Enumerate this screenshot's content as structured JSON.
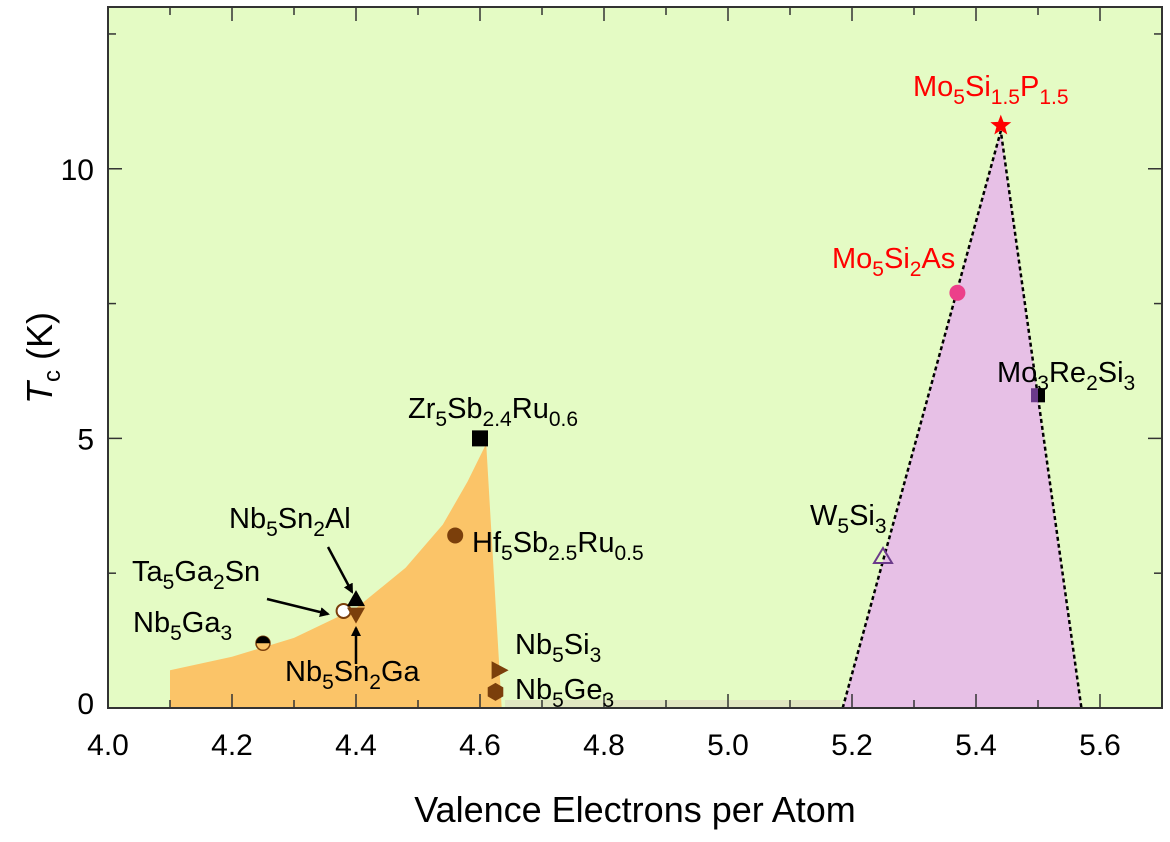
{
  "chart_data": {
    "type": "scatter",
    "title": "",
    "xlabel": "Valence Electrons per Atom",
    "ylabel": {
      "main": "T",
      "sub": "c",
      "unit": " (K)"
    },
    "xlim": [
      4.0,
      5.7
    ],
    "ylim": [
      0,
      13
    ],
    "x_ticks": [
      "4.0",
      "4.2",
      "4.4",
      "4.6",
      "4.8",
      "5.0",
      "5.2",
      "5.4",
      "5.6"
    ],
    "x_tick_values": [
      4.0,
      4.2,
      4.4,
      4.6,
      4.8,
      5.0,
      5.2,
      5.4,
      5.6
    ],
    "y_ticks": [
      "0",
      "5",
      "10"
    ],
    "y_tick_values": [
      0,
      5,
      10
    ],
    "grid": false,
    "colors": {
      "background": "#e4fbc4",
      "region_a": "#fbc468",
      "region_b": "#e7c0e6",
      "highlight": "#ff0000",
      "brown": "#7b3f0b",
      "pink": "#ec3f8a",
      "purple": "#6b3a8a"
    },
    "regions": [
      {
        "name": "region-low-vec",
        "polygon": [
          [
            4.1,
            0
          ],
          [
            4.1,
            0.7
          ],
          [
            4.2,
            0.95
          ],
          [
            4.3,
            1.3
          ],
          [
            4.4,
            1.85
          ],
          [
            4.48,
            2.6
          ],
          [
            4.54,
            3.4
          ],
          [
            4.58,
            4.2
          ],
          [
            4.61,
            4.9
          ],
          [
            4.635,
            0
          ]
        ]
      },
      {
        "name": "region-high-vec",
        "polygon": [
          [
            5.185,
            0
          ],
          [
            5.44,
            10.7
          ],
          [
            5.57,
            0
          ]
        ]
      }
    ],
    "points": [
      {
        "name": "Nb5Ga3",
        "x": 4.25,
        "y": 1.2,
        "marker": "half-circle",
        "label": [
          {
            "t": "Nb"
          },
          {
            "t": "5",
            "sub": true
          },
          {
            "t": "Ga"
          },
          {
            "t": "3",
            "sub": true
          }
        ]
      },
      {
        "name": "Ta5Ga2Sn",
        "x": 4.38,
        "y": 1.8,
        "marker": "open-circle",
        "label": [
          {
            "t": "Ta"
          },
          {
            "t": "5",
            "sub": true
          },
          {
            "t": "Ga"
          },
          {
            "t": "2",
            "sub": true
          },
          {
            "t": "Sn"
          }
        ]
      },
      {
        "name": "Nb5Sn2Al",
        "x": 4.4,
        "y": 2.0,
        "marker": "triangle-up",
        "label": [
          {
            "t": "Nb"
          },
          {
            "t": "5",
            "sub": true
          },
          {
            "t": "Sn"
          },
          {
            "t": "2",
            "sub": true
          },
          {
            "t": "Al"
          }
        ]
      },
      {
        "name": "Nb5Sn2Ga",
        "x": 4.4,
        "y": 1.75,
        "marker": "triangle-down",
        "label": [
          {
            "t": "Nb"
          },
          {
            "t": "5",
            "sub": true
          },
          {
            "t": "Sn"
          },
          {
            "t": "2",
            "sub": true
          },
          {
            "t": "Ga"
          }
        ]
      },
      {
        "name": "Zr5Sb2.4Ru0.6",
        "x": 4.6,
        "y": 5.0,
        "marker": "square",
        "label": [
          {
            "t": "Zr"
          },
          {
            "t": "5",
            "sub": true
          },
          {
            "t": "Sb"
          },
          {
            "t": "2.4",
            "sub": true
          },
          {
            "t": "Ru"
          },
          {
            "t": "0.6",
            "sub": true
          }
        ]
      },
      {
        "name": "Hf5Sb2.5Ru0.5",
        "x": 4.56,
        "y": 3.2,
        "marker": "circle",
        "label": [
          {
            "t": "Hf"
          },
          {
            "t": "5",
            "sub": true
          },
          {
            "t": "Sb"
          },
          {
            "t": "2.5",
            "sub": true
          },
          {
            "t": "Ru"
          },
          {
            "t": "0.5",
            "sub": true
          }
        ]
      },
      {
        "name": "Nb5Si3",
        "x": 4.63,
        "y": 0.7,
        "marker": "triangle-right",
        "label": [
          {
            "t": "Nb"
          },
          {
            "t": "5",
            "sub": true
          },
          {
            "t": "Si"
          },
          {
            "t": "3",
            "sub": true
          }
        ]
      },
      {
        "name": "Nb5Ge3",
        "x": 4.625,
        "y": 0.3,
        "marker": "hexagon",
        "label": [
          {
            "t": "Nb"
          },
          {
            "t": "5",
            "sub": true
          },
          {
            "t": "Ge"
          },
          {
            "t": "3",
            "sub": true
          }
        ]
      },
      {
        "name": "W5Si3",
        "x": 5.25,
        "y": 2.8,
        "marker": "open-triangle",
        "label": [
          {
            "t": "W"
          },
          {
            "t": "5",
            "sub": true
          },
          {
            "t": "Si"
          },
          {
            "t": "3",
            "sub": true
          }
        ]
      },
      {
        "name": "Mo5Si2As",
        "x": 5.37,
        "y": 7.7,
        "marker": "pink-circle",
        "highlight": true,
        "label": [
          {
            "t": "Mo"
          },
          {
            "t": "5",
            "sub": true
          },
          {
            "t": "Si"
          },
          {
            "t": "2",
            "sub": true
          },
          {
            "t": "As"
          }
        ]
      },
      {
        "name": "Mo3Re2Si3",
        "x": 5.5,
        "y": 5.8,
        "marker": "half-square",
        "label": [
          {
            "t": "Mo"
          },
          {
            "t": "3",
            "sub": true
          },
          {
            "t": "Re"
          },
          {
            "t": "2",
            "sub": true
          },
          {
            "t": "Si"
          },
          {
            "t": "3",
            "sub": true
          }
        ]
      },
      {
        "name": "Mo5Si1.5P1.5",
        "x": 5.44,
        "y": 10.8,
        "marker": "star",
        "highlight": true,
        "label": [
          {
            "t": "Mo"
          },
          {
            "t": "5",
            "sub": true
          },
          {
            "t": "Si"
          },
          {
            "t": "1.5",
            "sub": true
          },
          {
            "t": "P"
          },
          {
            "t": "1.5",
            "sub": true
          }
        ]
      }
    ]
  }
}
